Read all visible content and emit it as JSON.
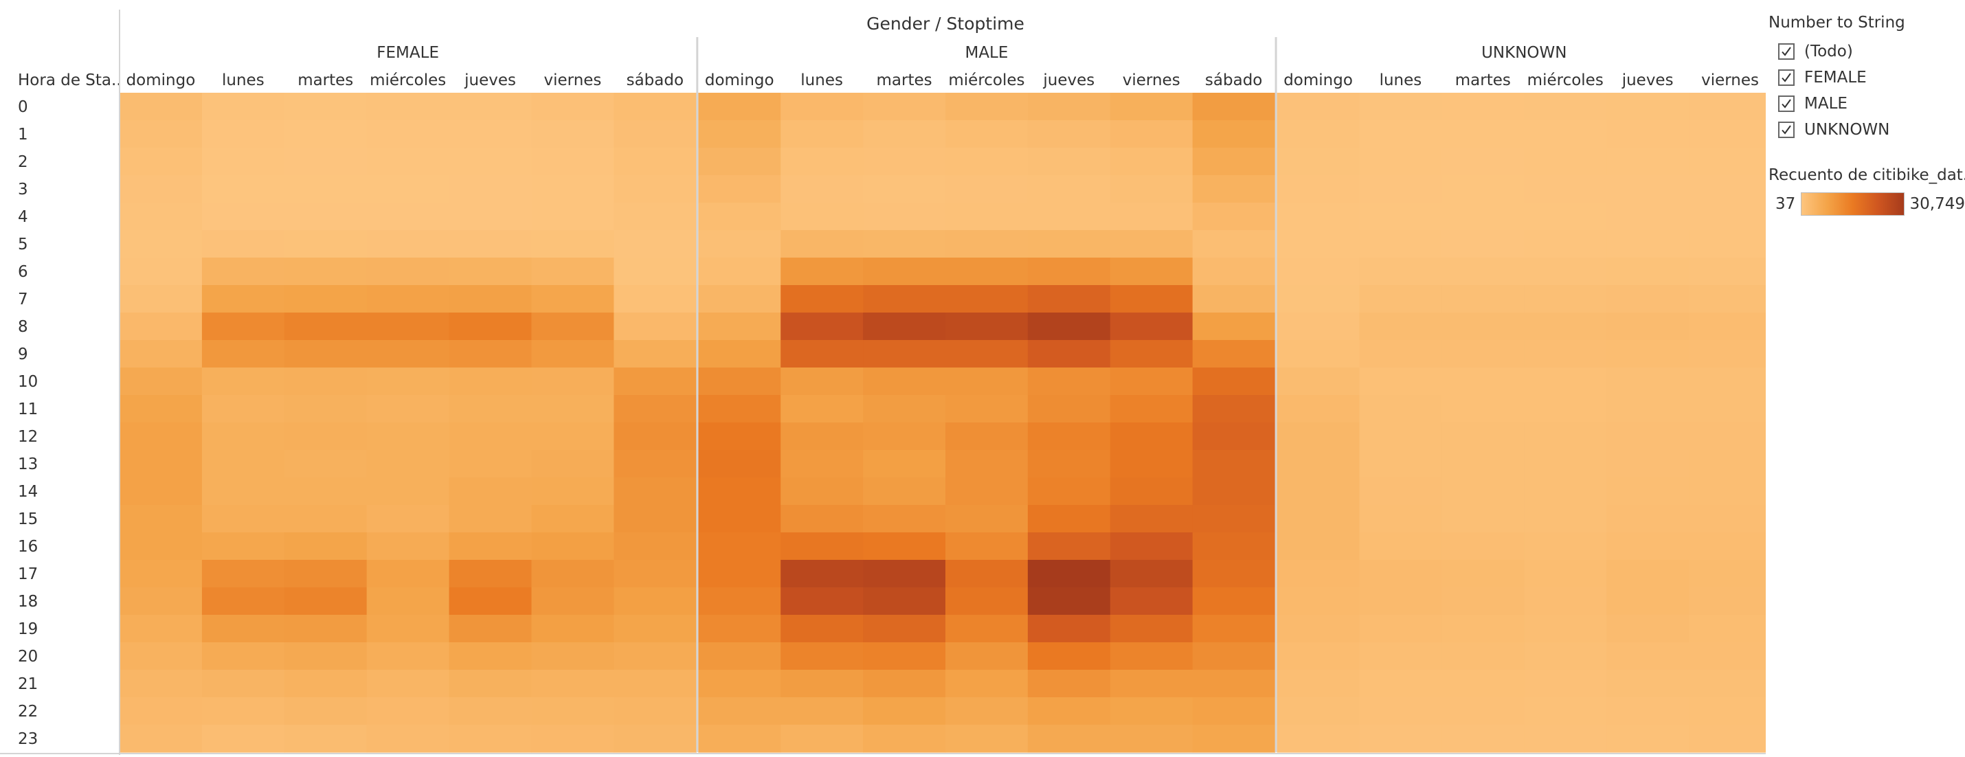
{
  "chart_data": {
    "type": "heatmap",
    "title": "Gender / Stoptime",
    "row_header": "Hora de Sta..",
    "groups": [
      "FEMALE",
      "MALE",
      "UNKNOWN"
    ],
    "days": {
      "FEMALE": [
        "domingo",
        "lunes",
        "martes",
        "miércoles",
        "jueves",
        "viernes",
        "sábado"
      ],
      "MALE": [
        "domingo",
        "lunes",
        "martes",
        "miércoles",
        "jueves",
        "viernes",
        "sábado"
      ],
      "UNKNOWN": [
        "domingo",
        "lunes",
        "martes",
        "miércoles",
        "jueves",
        "viernes"
      ]
    },
    "hours": [
      "0",
      "1",
      "2",
      "3",
      "4",
      "5",
      "6",
      "7",
      "8",
      "9",
      "10",
      "11",
      "12",
      "13",
      "14",
      "15",
      "16",
      "17",
      "18",
      "19",
      "20",
      "21",
      "22",
      "23"
    ],
    "color_range": [
      37,
      30749
    ],
    "values": {
      "FEMALE": [
        [
          2200,
          700,
          600,
          700,
          800,
          1100,
          2000
        ],
        [
          1700,
          400,
          350,
          400,
          450,
          650,
          1600
        ],
        [
          1300,
          250,
          200,
          250,
          280,
          400,
          1300
        ],
        [
          900,
          150,
          130,
          150,
          170,
          250,
          1000
        ],
        [
          700,
          200,
          180,
          200,
          210,
          260,
          700
        ],
        [
          600,
          900,
          850,
          900,
          900,
          850,
          500
        ],
        [
          800,
          4200,
          4300,
          4400,
          4300,
          3800,
          600
        ],
        [
          1500,
          7500,
          7800,
          8000,
          8200,
          7200,
          1300
        ],
        [
          3000,
          12500,
          13500,
          13500,
          14500,
          11500,
          3000
        ],
        [
          4500,
          10000,
          10500,
          10500,
          11000,
          9500,
          5500
        ],
        [
          6500,
          5000,
          5200,
          5000,
          5500,
          5300,
          9500
        ],
        [
          7500,
          4500,
          4800,
          4500,
          5000,
          5000,
          11000
        ],
        [
          8000,
          5000,
          5200,
          5000,
          5500,
          5500,
          11500
        ],
        [
          8000,
          5000,
          4800,
          5000,
          5500,
          5800,
          11000
        ],
        [
          8000,
          5000,
          5000,
          5000,
          6000,
          6200,
          10500
        ],
        [
          7500,
          5500,
          5500,
          4700,
          6000,
          7000,
          10500
        ],
        [
          7500,
          7000,
          7500,
          6000,
          8000,
          8500,
          10000
        ],
        [
          7000,
          11500,
          12000,
          8000,
          13500,
          10500,
          9500
        ],
        [
          6500,
          13000,
          13500,
          7500,
          15000,
          10000,
          8500
        ],
        [
          5500,
          9000,
          9200,
          7000,
          10500,
          8500,
          7500
        ],
        [
          4500,
          6000,
          6500,
          5500,
          7000,
          6500,
          6000
        ],
        [
          3500,
          4000,
          4500,
          3800,
          4800,
          4500,
          4500
        ],
        [
          3000,
          2800,
          3200,
          3000,
          3500,
          3600,
          3800
        ],
        [
          2500,
          1800,
          2200,
          2500,
          2800,
          3000,
          3200
        ]
      ],
      "MALE": [
        [
          6000,
          3000,
          2500,
          3500,
          4000,
          5000,
          9000
        ],
        [
          5000,
          2000,
          1500,
          2000,
          2300,
          3000,
          7500
        ],
        [
          4000,
          1300,
          1100,
          1300,
          1500,
          2000,
          6000
        ],
        [
          3000,
          900,
          800,
          900,
          1000,
          1400,
          4500
        ],
        [
          2000,
          1000,
          900,
          1000,
          1000,
          1200,
          3000
        ],
        [
          1500,
          3500,
          3400,
          3500,
          3600,
          3500,
          1700
        ],
        [
          2000,
          10000,
          10500,
          10500,
          11000,
          10000,
          2500
        ],
        [
          3500,
          17500,
          18500,
          18500,
          20000,
          17500,
          4000
        ],
        [
          6000,
          24000,
          26500,
          26000,
          28500,
          24000,
          8500
        ],
        [
          8500,
          19500,
          19500,
          19500,
          22000,
          18500,
          13000
        ],
        [
          12000,
          9000,
          10000,
          10000,
          11500,
          12500,
          17500
        ],
        [
          14000,
          8000,
          9000,
          9500,
          12000,
          14000,
          19500
        ],
        [
          15500,
          10000,
          9500,
          11500,
          14000,
          16000,
          20000
        ],
        [
          16000,
          9500,
          8500,
          11000,
          13500,
          16000,
          19000
        ],
        [
          15500,
          10000,
          9000,
          11000,
          14000,
          16500,
          19000
        ],
        [
          15500,
          11500,
          11000,
          10500,
          16000,
          18500,
          18500
        ],
        [
          15000,
          16000,
          15500,
          12500,
          20000,
          22500,
          18000
        ],
        [
          15000,
          27000,
          27500,
          17500,
          30749,
          26000,
          17500
        ],
        [
          14000,
          25000,
          26000,
          16500,
          30000,
          24000,
          16000
        ],
        [
          12500,
          18000,
          19000,
          13500,
          22000,
          18500,
          14000
        ],
        [
          10000,
          13500,
          14000,
          10500,
          15500,
          13500,
          12000
        ],
        [
          8000,
          9000,
          10000,
          8000,
          11000,
          9500,
          9500
        ],
        [
          6500,
          6500,
          7500,
          6500,
          8000,
          7500,
          8000
        ],
        [
          5500,
          4500,
          5500,
          5000,
          6500,
          6500,
          7000
        ]
      ],
      "UNKNOWN": [
        [
          900,
          500,
          450,
          500,
          550,
          650
        ],
        [
          700,
          350,
          300,
          350,
          400,
          450
        ],
        [
          550,
          250,
          200,
          250,
          280,
          320
        ],
        [
          450,
          180,
          150,
          180,
          200,
          230
        ],
        [
          350,
          150,
          130,
          150,
          170,
          180
        ],
        [
          300,
          250,
          230,
          250,
          260,
          270
        ],
        [
          400,
          800,
          800,
          800,
          850,
          800
        ],
        [
          600,
          1500,
          1500,
          1500,
          1600,
          1500
        ],
        [
          900,
          2200,
          2200,
          2200,
          2300,
          2100
        ],
        [
          1300,
          1900,
          1900,
          1900,
          2000,
          1900
        ],
        [
          2200,
          1300,
          1300,
          1300,
          1400,
          1400
        ],
        [
          2800,
          1400,
          1300,
          1300,
          1500,
          1500
        ],
        [
          3200,
          1500,
          1400,
          1400,
          1600,
          1600
        ],
        [
          3300,
          1500,
          1400,
          1400,
          1600,
          1700
        ],
        [
          3300,
          1600,
          1400,
          1400,
          1700,
          1700
        ],
        [
          3300,
          1700,
          1500,
          1500,
          1800,
          1900
        ],
        [
          3200,
          2000,
          1800,
          1700,
          2100,
          2100
        ],
        [
          3000,
          2600,
          2400,
          2000,
          2700,
          2400
        ],
        [
          2800,
          2500,
          2300,
          1900,
          2700,
          2300
        ],
        [
          2500,
          2100,
          2000,
          1700,
          2300,
          2000
        ],
        [
          2100,
          1700,
          1700,
          1500,
          1900,
          1800
        ],
        [
          1700,
          1300,
          1300,
          1200,
          1500,
          1500
        ],
        [
          1400,
          1100,
          1100,
          1000,
          1200,
          1300
        ],
        [
          1200,
          900,
          900,
          900,
          1000,
          1100
        ]
      ]
    }
  },
  "filter": {
    "title": "Number to String",
    "items": [
      "(Todo)",
      "FEMALE",
      "MALE",
      "UNKNOWN"
    ]
  },
  "color_legend": {
    "title": "Recuento de citibike_dat..",
    "min_label": "37",
    "max_label": "30,749"
  }
}
